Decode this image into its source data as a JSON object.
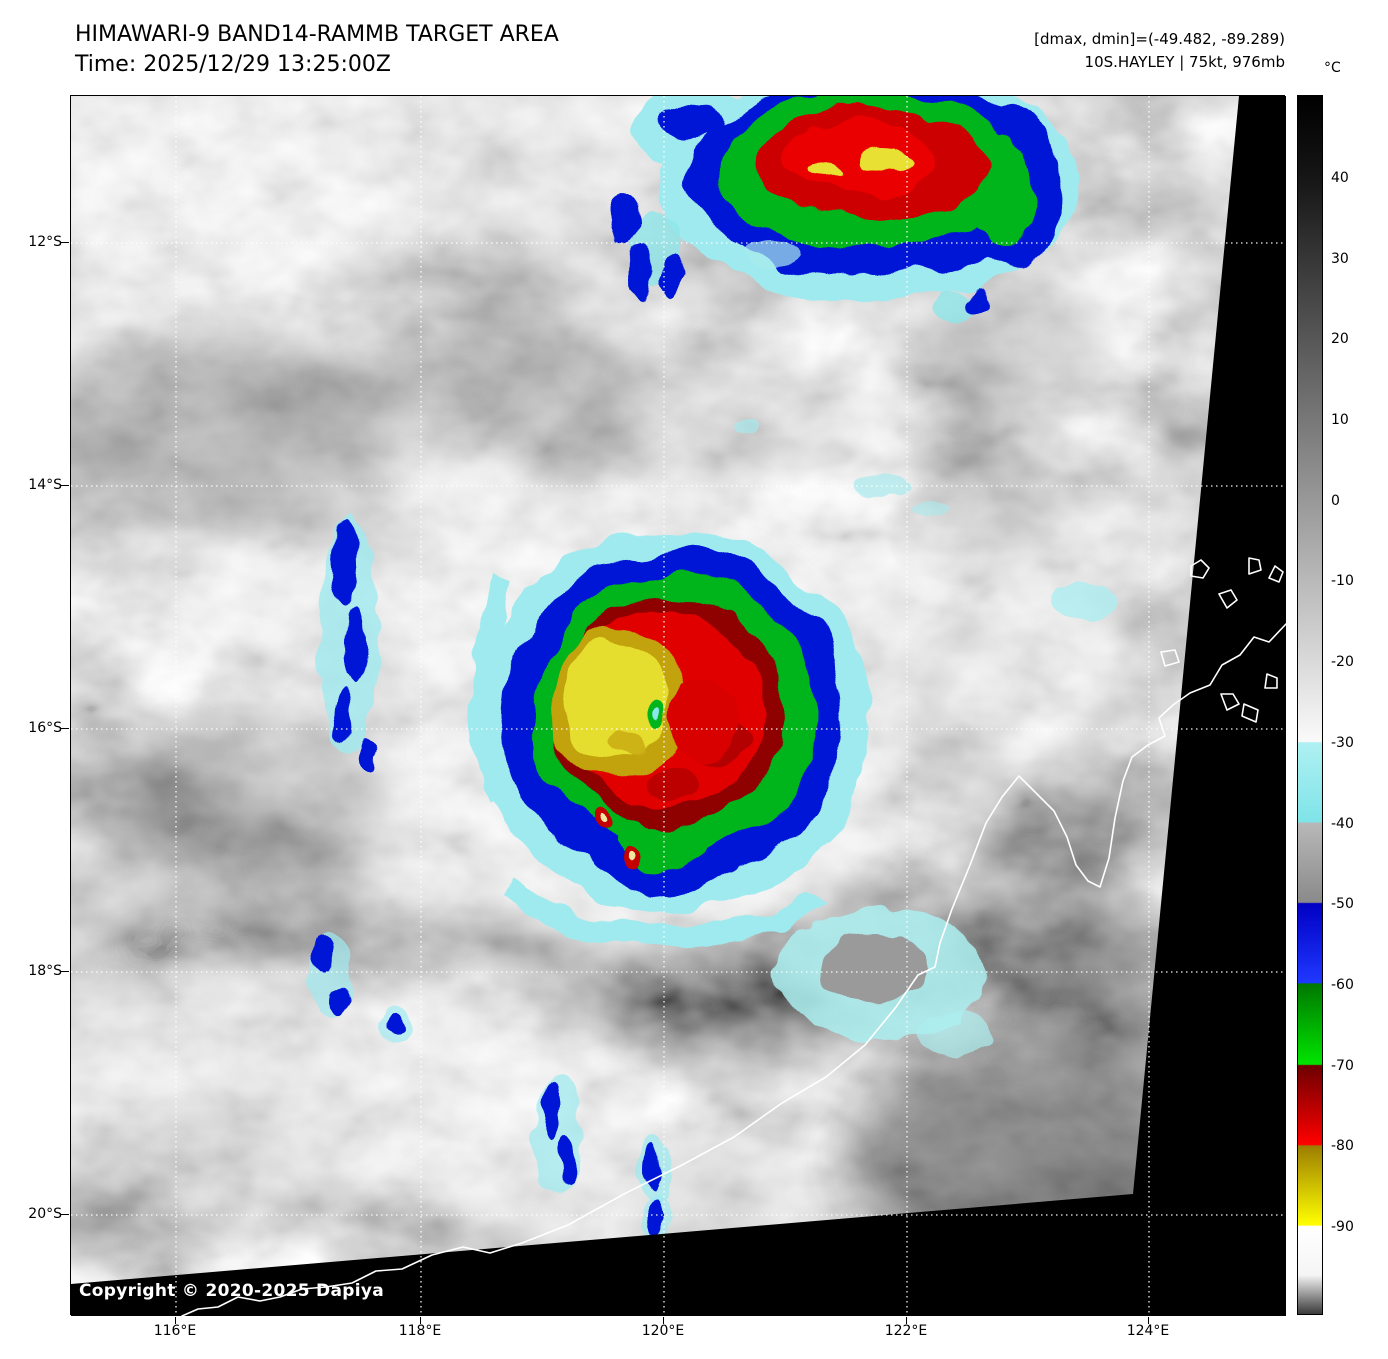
{
  "header": {
    "title": "HIMAWARI-9 BAND14-RAMMB TARGET AREA",
    "time": "Time: 2025/12/29 13:25:00Z",
    "dmax_dmin": "[dmax, dmin]=(-49.482, -89.289)",
    "storm_info": "10S.HAYLEY | 75kt, 976mb"
  },
  "image": {
    "copyright": "Copyright © 2020-2025 Dapiya"
  },
  "axes": {
    "lat_labels": [
      "12°S",
      "14°S",
      "16°S",
      "18°S",
      "20°S"
    ],
    "lon_labels": [
      "116°E",
      "118°E",
      "120°E",
      "122°E",
      "124°E"
    ]
  },
  "colorbar": {
    "unit": "°C",
    "ticks": [
      "40",
      "30",
      "20",
      "10",
      "0",
      "-10",
      "-20",
      "-30",
      "-40",
      "-50",
      "-60",
      "-70",
      "-80",
      "-90"
    ],
    "stops": [
      {
        "at": 0.0,
        "color": "#000000"
      },
      {
        "at": 0.068,
        "color": "#161616"
      },
      {
        "at": 0.53,
        "color": "#fafafa"
      },
      {
        "at": 0.531,
        "color": "#aff0f2"
      },
      {
        "at": 0.596,
        "color": "#7fe4e8"
      },
      {
        "at": 0.597,
        "color": "#b8b8b8"
      },
      {
        "at": 0.662,
        "color": "#8a8a8a"
      },
      {
        "at": 0.663,
        "color": "#0000c3"
      },
      {
        "at": 0.728,
        "color": "#2038ff"
      },
      {
        "at": 0.729,
        "color": "#007800"
      },
      {
        "at": 0.795,
        "color": "#00e400"
      },
      {
        "at": 0.796,
        "color": "#6e0000"
      },
      {
        "at": 0.861,
        "color": "#ff0000"
      },
      {
        "at": 0.862,
        "color": "#9c7e00"
      },
      {
        "at": 0.927,
        "color": "#ffff00"
      },
      {
        "at": 0.928,
        "color": "#ffffff"
      },
      {
        "at": 0.968,
        "color": "#f5f5f5"
      },
      {
        "at": 1.0,
        "color": "#3a3a3a"
      }
    ]
  },
  "colors": {
    "background": "#ffffff",
    "coastline": "#ffffff",
    "gridline": "#ffffff",
    "no_data": "#000000",
    "enh_cyan": "#9feaef",
    "enh_blue": "#0413d6",
    "enh_green": "#00b41e",
    "enh_dark_red": "#8f0000",
    "enh_red": "#e10000",
    "enh_yellow": "#e6de2e"
  }
}
